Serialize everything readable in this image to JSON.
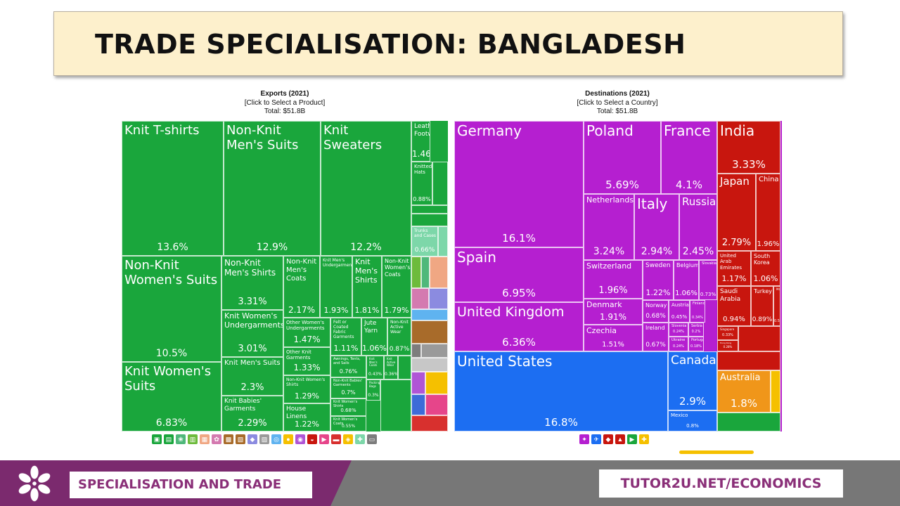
{
  "slide": {
    "title": "TRADE SPECIALISATION: BANGLADESH",
    "footer_left": "SPECIALISATION AND TRADE",
    "footer_right": "TUTOR2U.NET/ECONOMICS"
  },
  "colors": {
    "title_bg": "#fdf0cc",
    "footer_purple": "#7b2a6e",
    "footer_grey": "#777777",
    "textiles_green": "#1aa63c",
    "europe_magenta": "#b51fd0",
    "americas_blue": "#1c6ef2",
    "asia_red": "#c8160e",
    "oceania_orange": "#f0961a"
  },
  "chart_data": [
    {
      "type": "treemap",
      "title": "Exports (2021)",
      "subtitle": "[Click to Select a Product]",
      "total_label": "Total: $51.8B",
      "units": "% of total exports",
      "items": [
        {
          "name": "Knit T-shirts",
          "value": 13.6,
          "label": "13.6%"
        },
        {
          "name": "Non-Knit Men's Suits",
          "value": 12.9,
          "label": "12.9%"
        },
        {
          "name": "Knit Sweaters",
          "value": 12.2,
          "label": "12.2%"
        },
        {
          "name": "Non-Knit Women's Suits",
          "value": 10.5,
          "label": "10.5%"
        },
        {
          "name": "Knit Women's Suits",
          "value": 6.83,
          "label": "6.83%"
        },
        {
          "name": "Non-Knit Men's Shirts",
          "value": 3.31,
          "label": "3.31%"
        },
        {
          "name": "Knit Women's Undergarments",
          "value": 3.01,
          "label": "3.01%"
        },
        {
          "name": "Knit Men's Suits",
          "value": 2.3,
          "label": "2.3%"
        },
        {
          "name": "Knit Babies' Garments",
          "value": 2.29,
          "label": "2.29%"
        },
        {
          "name": "Non-Knit Men's Coats",
          "value": 2.17,
          "label": "2.17%"
        },
        {
          "name": "Knit Men's Undergarments",
          "value": 1.93,
          "label": "1.93%"
        },
        {
          "name": "Knit Men's Shirts",
          "value": 1.81,
          "label": "1.81%"
        },
        {
          "name": "Non-Knit Women's Coats",
          "value": 1.79,
          "label": "1.79%"
        },
        {
          "name": "Other Women's Undergarments",
          "value": 1.47,
          "label": "1.47%"
        },
        {
          "name": "Other Knit Garments",
          "value": 1.33,
          "label": "1.33%"
        },
        {
          "name": "Non-Knit Women's Shirts",
          "value": 1.29,
          "label": "1.29%"
        },
        {
          "name": "House Linens",
          "value": 1.22,
          "label": "1.22%"
        },
        {
          "name": "Felt or Coated Fabric Garments",
          "value": 1.11,
          "label": "1.11%"
        },
        {
          "name": "Jute Yarn",
          "value": 1.06,
          "label": "1.06%"
        },
        {
          "name": "Non-Knit Active Wear",
          "value": 0.87,
          "label": "0.87%"
        },
        {
          "name": "Awnings, Tents, and Sails",
          "value": 0.76,
          "label": "0.76%"
        },
        {
          "name": "Non-Knit Babies' Garments",
          "value": 0.7,
          "label": "0.7%"
        },
        {
          "name": "Knit Women's Shirts",
          "value": 0.68,
          "label": "0.68%"
        },
        {
          "name": "Knit Women's Coats",
          "value": 0.55,
          "label": "0.55%"
        },
        {
          "name": "Knit Men's Coats",
          "value": 0.43,
          "label": "0.43%"
        },
        {
          "name": "Knit Active Wear",
          "value": 0.36,
          "label": "0.36%"
        },
        {
          "name": "Packing Bags",
          "value": 0.3,
          "label": "0.3%"
        },
        {
          "name": "Leather Footwear",
          "value": 1.46,
          "label": "1.46%"
        },
        {
          "name": "Knitted Hats",
          "value": 0.88,
          "label": "0.88%"
        },
        {
          "name": "Trunks and Cases",
          "value": 0.66,
          "label": "0.66%"
        }
      ]
    },
    {
      "type": "treemap",
      "title": "Destinations (2021)",
      "subtitle": "[Click to Select a Country]",
      "total_label": "Total: $51.8B",
      "units": "% of total exports",
      "items": [
        {
          "name": "Germany",
          "value": 16.1,
          "label": "16.1%"
        },
        {
          "name": "Spain",
          "value": 6.95,
          "label": "6.95%"
        },
        {
          "name": "United Kingdom",
          "value": 6.36,
          "label": "6.36%"
        },
        {
          "name": "Poland",
          "value": 5.69,
          "label": "5.69%"
        },
        {
          "name": "France",
          "value": 4.1,
          "label": "4.1%"
        },
        {
          "name": "Netherlands",
          "value": 3.24,
          "label": "3.24%"
        },
        {
          "name": "Italy",
          "value": 2.94,
          "label": "2.94%"
        },
        {
          "name": "Russia",
          "value": 2.45,
          "label": "2.45%"
        },
        {
          "name": "Switzerland",
          "value": 1.96,
          "label": "1.96%"
        },
        {
          "name": "Denmark",
          "value": 1.91,
          "label": "1.91%"
        },
        {
          "name": "Czechia",
          "value": 1.51,
          "label": "1.51%"
        },
        {
          "name": "Sweden",
          "value": 1.22,
          "label": "1.22%"
        },
        {
          "name": "Belgium",
          "value": 1.06,
          "label": "1.06%"
        },
        {
          "name": "Slovakia",
          "value": 0.73,
          "label": "0.73%"
        },
        {
          "name": "Norway",
          "value": 0.68,
          "label": "0.68%"
        },
        {
          "name": "Ireland",
          "value": 0.67,
          "label": "0.67%"
        },
        {
          "name": "Austria",
          "value": 0.45,
          "label": "0.45%"
        },
        {
          "name": "Finland",
          "value": 0.34,
          "label": "0.34%"
        },
        {
          "name": "Slovenia",
          "value": 0.24,
          "label": "0.24%"
        },
        {
          "name": "Ukraine",
          "value": 0.24,
          "label": "0.24%"
        },
        {
          "name": "Serbia",
          "value": 0.2,
          "label": "0.2%"
        },
        {
          "name": "Portugal",
          "value": 0.18,
          "label": "0.18%"
        },
        {
          "name": "United States",
          "value": 16.8,
          "label": "16.8%"
        },
        {
          "name": "Canada",
          "value": 2.9,
          "label": "2.9%"
        },
        {
          "name": "Mexico",
          "value": 0.8,
          "label": "0.8%"
        },
        {
          "name": "India",
          "value": 3.33,
          "label": "3.33%"
        },
        {
          "name": "Japan",
          "value": 2.79,
          "label": "2.79%"
        },
        {
          "name": "China",
          "value": 1.96,
          "label": "1.96%"
        },
        {
          "name": "United Arab Emirates",
          "value": 1.17,
          "label": "1.17%"
        },
        {
          "name": "South Korea",
          "value": 1.06,
          "label": "1.06%"
        },
        {
          "name": "Saudi Arabia",
          "value": 0.94,
          "label": "0.94%"
        },
        {
          "name": "Turkey",
          "value": 0.89,
          "label": "0.89%"
        },
        {
          "name": "Malaysia",
          "value": 0.59,
          "label": "0.59%"
        },
        {
          "name": "Singapore",
          "value": 0.33,
          "label": "0.33%"
        },
        {
          "name": "Hong Kong",
          "value": 0.28,
          "label": "0.28%"
        },
        {
          "name": "Australia",
          "value": 1.8,
          "label": "1.8%"
        }
      ]
    }
  ]
}
